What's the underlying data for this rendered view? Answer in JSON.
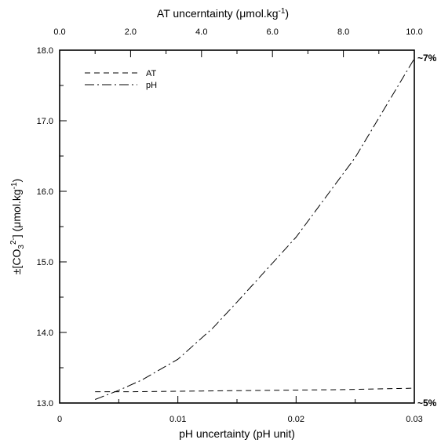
{
  "chart_data": {
    "type": "line",
    "title": "",
    "x_bottom": {
      "label": "pH uncertainty (pH unit)",
      "ticks": [
        "0",
        "0.01",
        "0.02",
        "0.03"
      ],
      "range": [
        0,
        0.03
      ]
    },
    "x_top": {
      "label_prefix": "AT uncerntainty (",
      "label_mu": "μ",
      "label_mid": "mol.kg",
      "label_sup": "-1",
      "label_suffix": ")",
      "ticks": [
        "0.0",
        "2.0",
        "4.0",
        "6.0",
        "8.0",
        "10.0"
      ],
      "range": [
        0,
        10
      ]
    },
    "y": {
      "label_prefix": "±[CO",
      "label_sub": "3",
      "label_sup1": "2-",
      "label_mid": "] (",
      "label_mu": "μ",
      "label_mid2": "mol.kg",
      "label_sup2": "-1",
      "label_suffix": ")",
      "ticks": [
        "13.0",
        "14.0",
        "15.0",
        "16.0",
        "17.0",
        "18.0"
      ],
      "range": [
        13,
        18
      ]
    },
    "right_annotations": {
      "top": "~7%",
      "bottom": "~5%"
    },
    "legend": {
      "placement": "top-left",
      "entries": [
        "AT",
        "pH"
      ]
    },
    "grid": false,
    "series": [
      {
        "name": "AT",
        "axis": "top",
        "style": "dashed",
        "x": [
          1,
          2,
          4,
          6,
          8,
          10
        ],
        "y": [
          13.16,
          13.16,
          13.17,
          13.18,
          13.19,
          13.21
        ]
      },
      {
        "name": "pH",
        "axis": "bottom",
        "style": "dash-dot",
        "x": [
          0.003,
          0.005,
          0.007,
          0.01,
          0.013,
          0.015,
          0.02,
          0.025,
          0.03
        ],
        "y": [
          13.05,
          13.18,
          13.33,
          13.62,
          14.07,
          14.43,
          15.35,
          16.48,
          17.88
        ]
      }
    ]
  }
}
